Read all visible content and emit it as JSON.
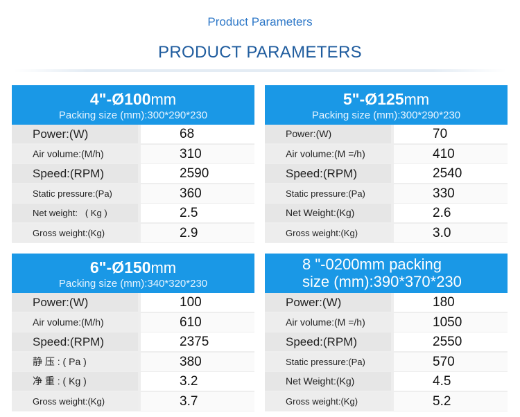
{
  "header": {
    "subtitle": "Product Parameters",
    "title": "PRODUCT PARAMETERS"
  },
  "panels": [
    {
      "size_bold": "4\"-Ø100",
      "size_unit": "mm",
      "packing": "Packing size (mm):300*290*230",
      "rows": [
        {
          "label": "Power:(W)",
          "value": "68"
        },
        {
          "label": "Air volume:(M/h)",
          "value": "310"
        },
        {
          "label": "Speed:(RPM)",
          "value": "2590"
        },
        {
          "label": "Static pressure:(Pa)",
          "value": "360"
        },
        {
          "label": "Net weight:   ( Kg )",
          "value": "2.5"
        },
        {
          "label": "Gross weight:(Kg)",
          "value": "2.9"
        }
      ]
    },
    {
      "size_bold": "5\"-Ø125",
      "size_unit": "mm",
      "packing": "Packing size (mm):300*290*230",
      "rows": [
        {
          "label": "Power:(W)",
          "value": "70"
        },
        {
          "label": "Air volume:(M =/h)",
          "value": "410"
        },
        {
          "label": "Speed:(RPM)",
          "value": "2540"
        },
        {
          "label": "Static pressure:(Pa)",
          "value": "330"
        },
        {
          "label": "Net Weight:(Kg)",
          "value": "2.6"
        },
        {
          "label": "Gross weight:(Kg)",
          "value": "3.0"
        }
      ]
    },
    {
      "size_bold": "6\"-Ø150",
      "size_unit": "mm",
      "packing": "Packing size (mm):340*320*230",
      "rows": [
        {
          "label": "Power:(W)",
          "value": "100"
        },
        {
          "label": "Air volume:(M/h)",
          "value": "610"
        },
        {
          "label": "Speed:(RPM)",
          "value": "2375"
        },
        {
          "label": "静 压 : ( Pa )",
          "value": "380"
        },
        {
          "label": "净 重 : ( Kg )",
          "value": "3.2"
        },
        {
          "label": "Gross weight:(Kg)",
          "value": "3.7"
        }
      ]
    },
    {
      "header_line1": "8 \"-0200mm packing",
      "header_line2": "size (mm):390*370*230",
      "rows": [
        {
          "label": "Power:(W)",
          "value": "180"
        },
        {
          "label": "Air volume:(M =/h)",
          "value": "1050"
        },
        {
          "label": "Speed:(RPM)",
          "value": "2550"
        },
        {
          "label": "Static pressure:(Pa)",
          "value": "570"
        },
        {
          "label": "Net Weight:(Kg)",
          "value": "4.5"
        },
        {
          "label": "Gross weight:(Kg)",
          "value": "5.2"
        }
      ]
    }
  ]
}
